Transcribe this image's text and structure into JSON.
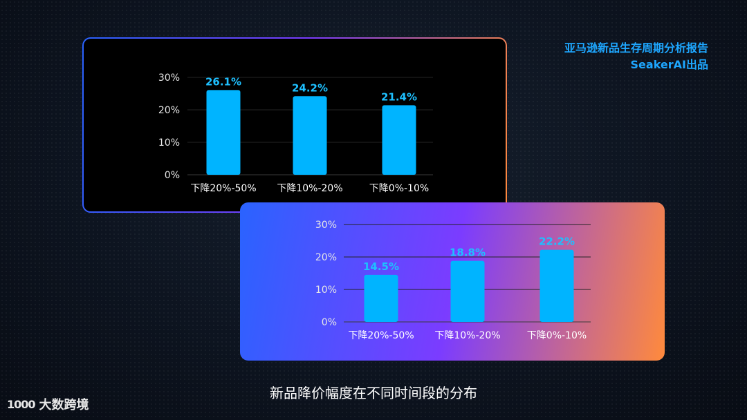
{
  "report": {
    "line1": "亚马逊新品生存周期分析报告",
    "line2": "SeakerAI出品"
  },
  "caption": "新品降价幅度在不同时间段的分布",
  "logo": {
    "mark": "1000",
    "text": "大数跨境"
  },
  "colors": {
    "bar": "#00b4ff",
    "data_label": "#1ec0ff",
    "report_title": "#1ea7ff"
  },
  "chart_data": [
    {
      "type": "bar",
      "categories": [
        "下降20%-50%",
        "下降10%-20%",
        "下降0%-10%"
      ],
      "values": [
        26.1,
        24.2,
        21.4
      ],
      "data_labels": [
        "26.1%",
        "24.2%",
        "21.4%"
      ],
      "yticks": [
        "0%",
        "10%",
        "20%",
        "30%"
      ],
      "ylim": [
        0,
        30
      ],
      "grid": true
    },
    {
      "type": "bar",
      "categories": [
        "下降20%-50%",
        "下降10%-20%",
        "下降0%-10%"
      ],
      "values": [
        14.5,
        18.8,
        22.2
      ],
      "data_labels": [
        "14.5%",
        "18.8%",
        "22.2%"
      ],
      "yticks": [
        "0%",
        "10%",
        "20%",
        "30%"
      ],
      "ylim": [
        0,
        30
      ],
      "grid": true
    }
  ]
}
